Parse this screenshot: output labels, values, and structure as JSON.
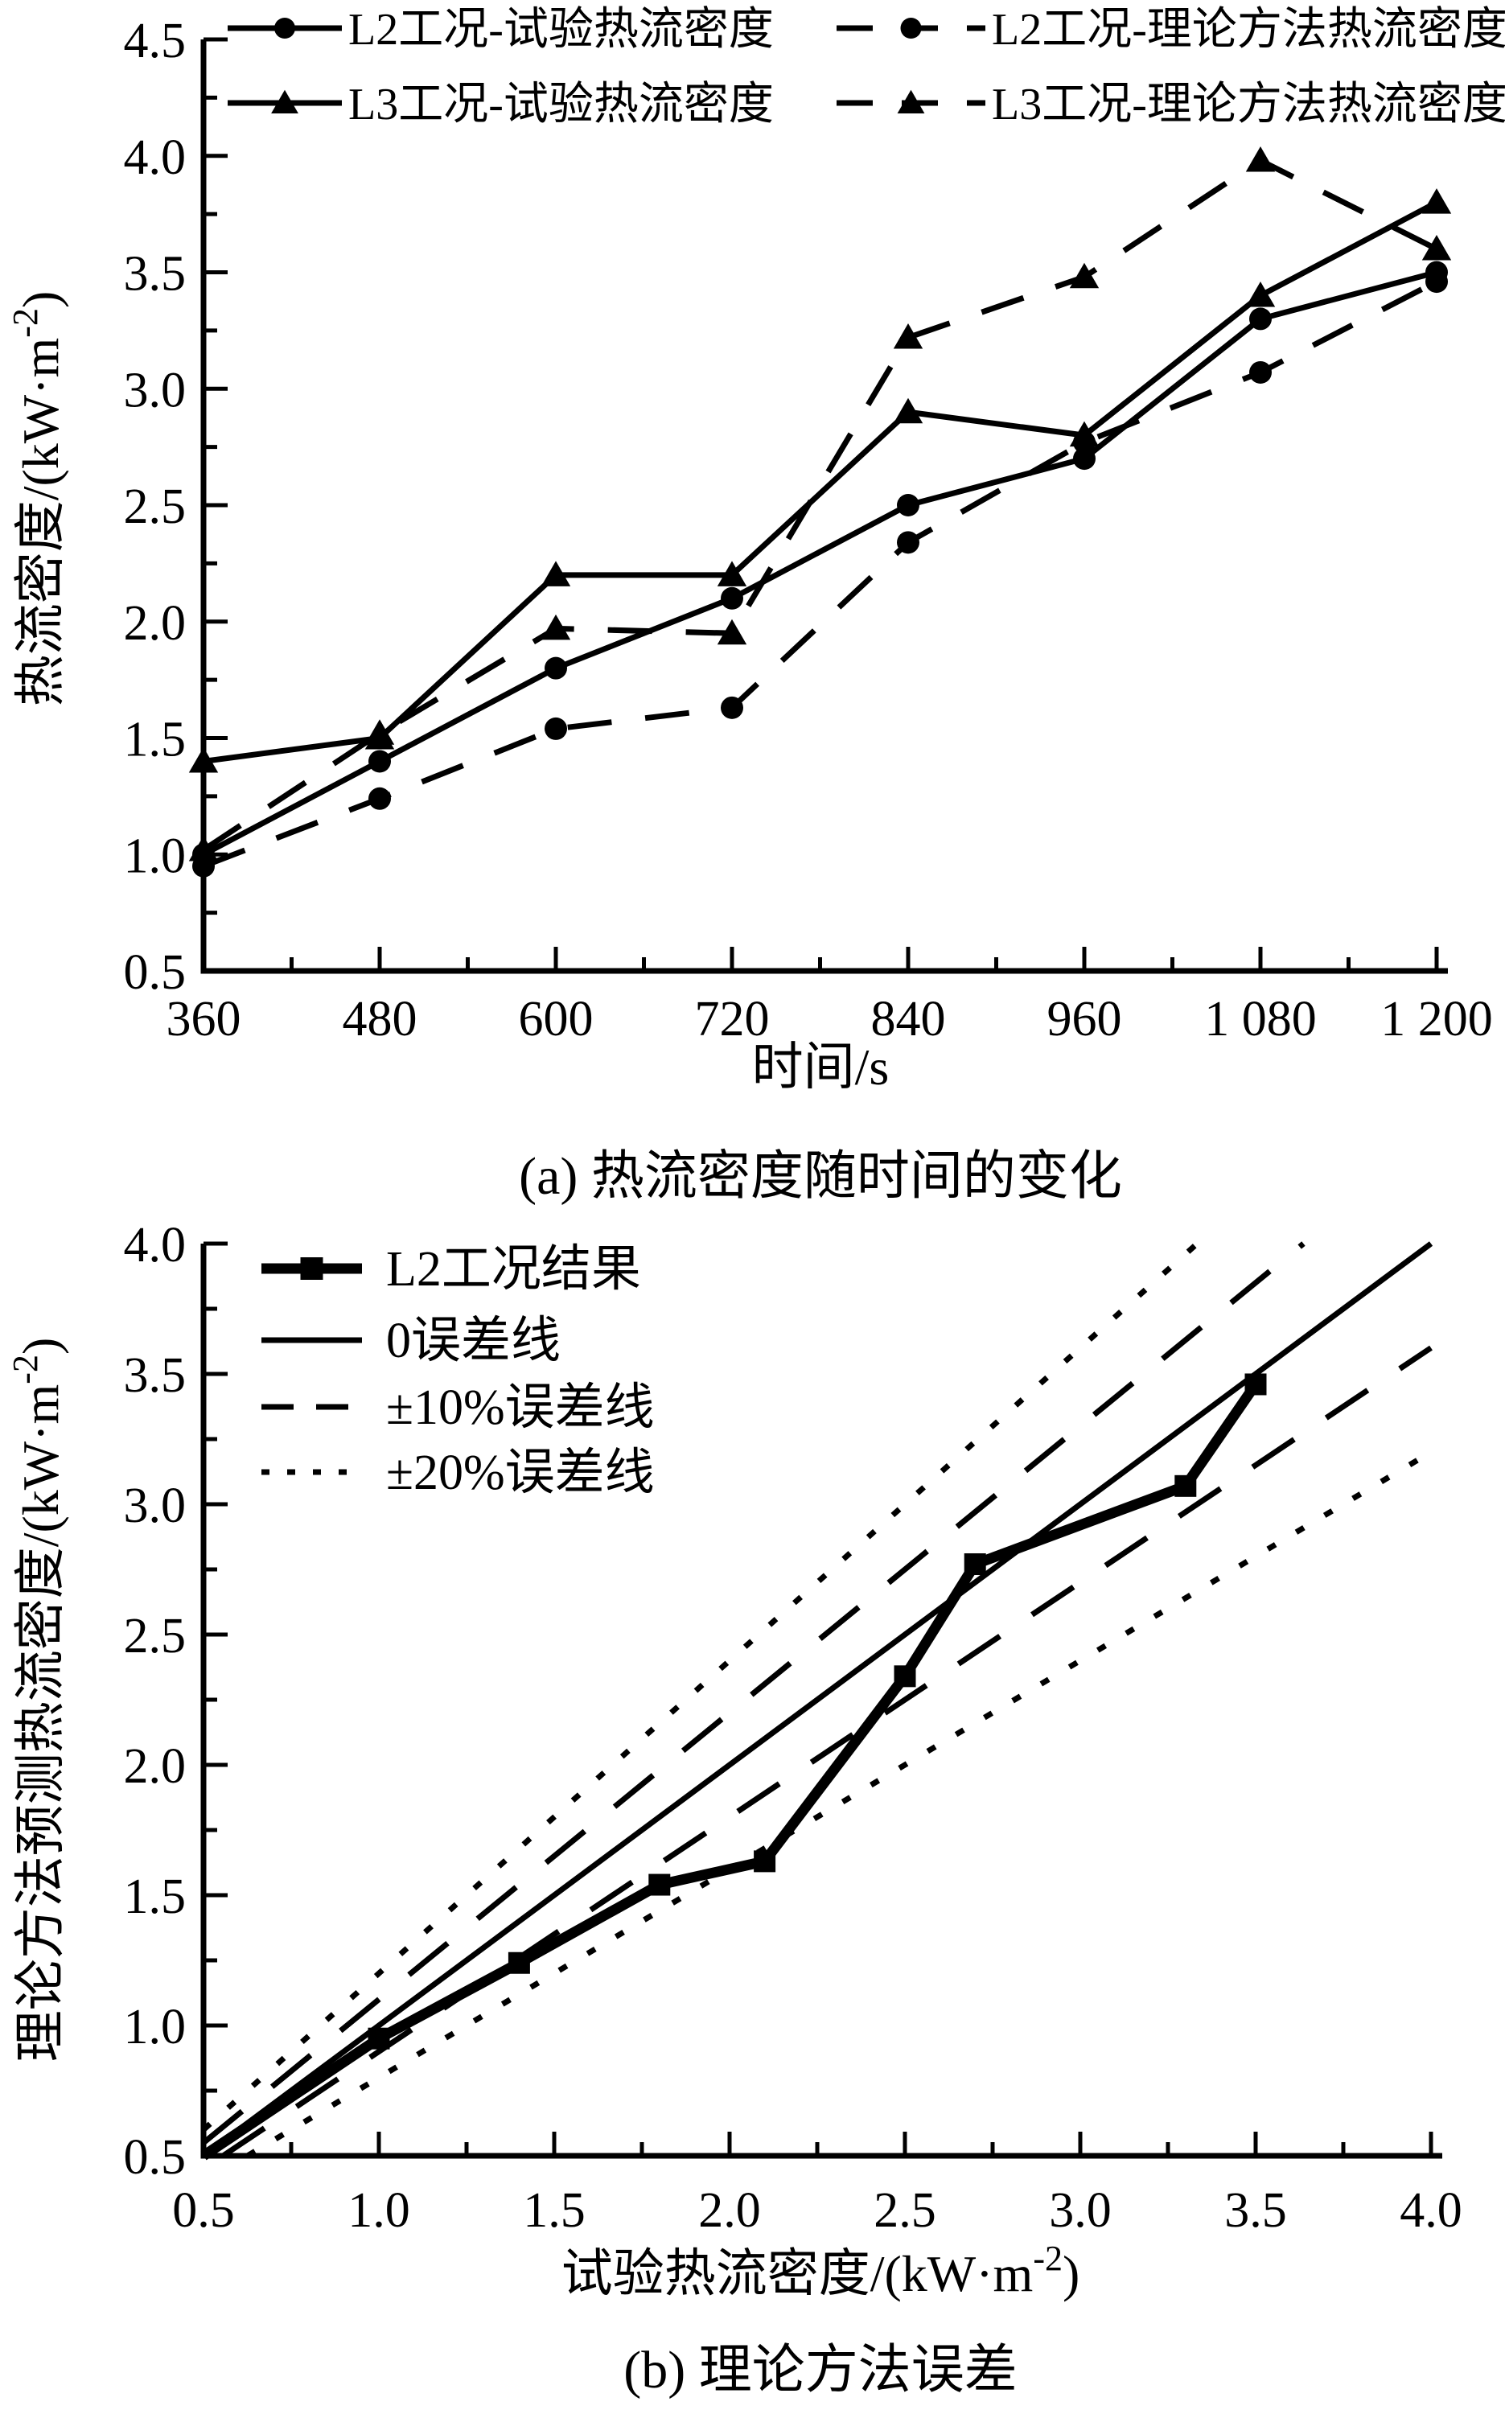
{
  "figure": {
    "background": "#ffffff",
    "ink_color": "#000000"
  },
  "chart_data": [
    {
      "id": "a",
      "type": "line",
      "caption": "(a) 热流密度随时间的变化",
      "xlabel": {
        "pre": "时间/s",
        "sup": "",
        "post": ""
      },
      "ylabel": {
        "pre": "热流密度/(kW·m",
        "sup": "-2",
        "post": ")"
      },
      "xlim": [
        360,
        1200
      ],
      "ylim": [
        0.5,
        4.5
      ],
      "x": [
        360,
        480,
        600,
        720,
        840,
        960,
        1080,
        1200
      ],
      "xtick_values": [
        360,
        480,
        600,
        720,
        840,
        960,
        1080,
        1200
      ],
      "xtick_labels": [
        "360",
        "480",
        "600",
        "720",
        "840",
        "960",
        "1 080",
        "1 200"
      ],
      "ytick_values": [
        0.5,
        1.0,
        1.5,
        2.0,
        2.5,
        3.0,
        3.5,
        4.0,
        4.5
      ],
      "ytick_labels": [
        "0.5",
        "1.0",
        "1.5",
        "2.0",
        "2.5",
        "3.0",
        "3.5",
        "4.0",
        "4.5"
      ],
      "x_minor_step": 60,
      "y_minor_step": 0.25,
      "grid": false,
      "legend_position": "top-inside",
      "series": [
        {
          "name": "L2工况-试验热流密度",
          "line": "solid",
          "marker": "circle",
          "values": [
            1.0,
            1.4,
            1.8,
            2.1,
            2.5,
            2.7,
            3.3,
            3.5
          ]
        },
        {
          "name": "L2工况-理论方法热流密度",
          "line": "dashed",
          "marker": "circle",
          "values": [
            0.95,
            1.24,
            1.54,
            1.63,
            2.34,
            2.77,
            3.07,
            3.46
          ]
        },
        {
          "name": "L3工况-试验热流密度",
          "line": "solid",
          "marker": "triangle",
          "values": [
            1.4,
            1.5,
            2.2,
            2.2,
            2.9,
            2.8,
            3.4,
            3.8
          ]
        },
        {
          "name": "L3工况-理论方法热流密度",
          "line": "dashed",
          "marker": "triangle",
          "values": [
            1.02,
            1.52,
            1.97,
            1.95,
            3.22,
            3.48,
            3.98,
            3.6
          ]
        }
      ]
    },
    {
      "id": "b",
      "type": "line",
      "caption": "(b) 理论方法误差",
      "xlabel": {
        "pre": "试验热流密度/(kW·m",
        "sup": "-2",
        "post": ")"
      },
      "ylabel": {
        "pre": "理论方法预测热流密度/(kW·m",
        "sup": "-2",
        "post": ")"
      },
      "xlim": [
        0.5,
        4.0
      ],
      "ylim": [
        0.5,
        4.0
      ],
      "xtick_values": [
        0.5,
        1.0,
        1.5,
        2.0,
        2.5,
        3.0,
        3.5,
        4.0
      ],
      "xtick_labels": [
        "0.5",
        "1.0",
        "1.5",
        "2.0",
        "2.5",
        "3.0",
        "3.5",
        "4.0"
      ],
      "ytick_values": [
        0.5,
        1.0,
        1.5,
        2.0,
        2.5,
        3.0,
        3.5,
        4.0
      ],
      "ytick_labels": [
        "0.5",
        "1.0",
        "1.5",
        "2.0",
        "2.5",
        "3.0",
        "3.5",
        "4.0"
      ],
      "x_minor_step": 0.25,
      "y_minor_step": 0.25,
      "grid": false,
      "legend_position": "top-left-inside",
      "series": [
        {
          "name": "L2工况结果",
          "kind": "data",
          "line": "solid-thick",
          "marker": "square",
          "line_start": [
            0.5,
            0.5
          ],
          "points": [
            [
              1.0,
              0.95
            ],
            [
              1.4,
              1.24
            ],
            [
              1.8,
              1.54
            ],
            [
              2.1,
              1.63
            ],
            [
              2.5,
              2.34
            ],
            [
              2.7,
              2.77
            ],
            [
              3.3,
              3.07
            ],
            [
              3.5,
              3.46
            ]
          ]
        },
        {
          "name": "0误差线",
          "kind": "slopes",
          "line": "solid",
          "marker": "none",
          "slopes": [
            1.0
          ]
        },
        {
          "name": "±10%误差线",
          "kind": "slopes",
          "line": "dashed",
          "marker": "none",
          "slopes": [
            1.1,
            0.9
          ]
        },
        {
          "name": "±20%误差线",
          "kind": "slopes",
          "line": "dotted",
          "marker": "none",
          "slopes": [
            1.2,
            0.8
          ]
        }
      ]
    }
  ]
}
